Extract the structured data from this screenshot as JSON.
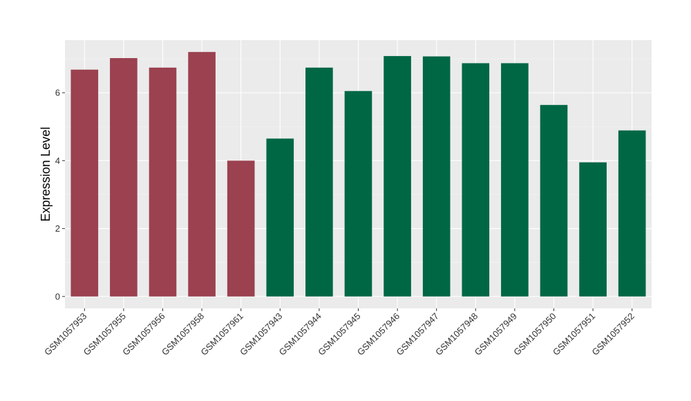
{
  "chart_data": {
    "type": "bar",
    "title": "",
    "xlabel": "",
    "ylabel": "Expression Level",
    "ylim": [
      -0.35,
      7.55
    ],
    "yticks": [
      0,
      2,
      4,
      6
    ],
    "grid": true,
    "legend": "none",
    "categories": [
      "GSM1057953",
      "GSM1057955",
      "GSM1057956",
      "GSM1057958",
      "GSM1057961",
      "GSM1057943",
      "GSM1057944",
      "GSM1057945",
      "GSM1057946",
      "GSM1057947",
      "GSM1057948",
      "GSM1057949",
      "GSM1057950",
      "GSM1057951",
      "GSM1057952"
    ],
    "values": [
      6.68,
      7.02,
      6.74,
      7.2,
      4.0,
      4.65,
      6.74,
      6.05,
      7.08,
      7.07,
      6.87,
      6.87,
      5.64,
      3.95,
      4.89
    ],
    "bar_colors": [
      "#9b4150",
      "#9b4150",
      "#9b4150",
      "#9b4150",
      "#9b4150",
      "#006745",
      "#006745",
      "#006745",
      "#006745",
      "#006745",
      "#006745",
      "#006745",
      "#006745",
      "#006745",
      "#006745"
    ],
    "colors": {
      "panel_background": "#ebebeb",
      "grid_major": "#ffffff",
      "grid_minor": "#f5f5f5",
      "tick": "#333333"
    }
  }
}
